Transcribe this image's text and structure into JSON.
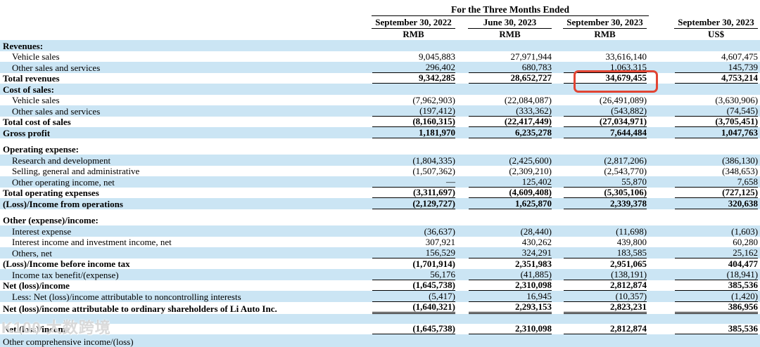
{
  "header": {
    "group_title": "For the Three Months Ended",
    "columns": [
      {
        "date": "September 30, 2022",
        "unit": "RMB"
      },
      {
        "date": "June 30, 2023",
        "unit": "RMB"
      },
      {
        "date": "September 30, 2023",
        "unit": "RMB"
      },
      {
        "date": "September 30, 2023",
        "unit": "US$"
      }
    ]
  },
  "rows": [
    {
      "label": "Revenues:",
      "bold": true,
      "indent": 0,
      "stripe": "blue",
      "rule": "none",
      "values": [
        "",
        "",
        "",
        ""
      ]
    },
    {
      "label": "Vehicle sales",
      "bold": false,
      "indent": 1,
      "stripe": "white",
      "rule": "none",
      "values": [
        "9,045,883",
        "27,971,944",
        "33,616,140",
        "4,607,475"
      ]
    },
    {
      "label": "Other sales and services",
      "bold": false,
      "indent": 1,
      "stripe": "blue",
      "rule": "single",
      "values": [
        "296,402",
        "680,783",
        "1,063,315",
        "145,739"
      ]
    },
    {
      "label": "Total revenues",
      "bold": true,
      "indent": 0,
      "stripe": "white",
      "rule": "single",
      "values": [
        "9,342,285",
        "28,652,727",
        "34,679,455",
        "4,753,214"
      ],
      "highlighted_value": "34,679,455"
    },
    {
      "label": "Cost of sales:",
      "bold": true,
      "indent": 0,
      "stripe": "blue",
      "rule": "none",
      "values": [
        "",
        "",
        "",
        ""
      ]
    },
    {
      "label": "Vehicle sales",
      "bold": false,
      "indent": 1,
      "stripe": "white",
      "rule": "none",
      "values": [
        "(7,962,903)",
        "(22,084,087)",
        "(26,491,089)",
        "(3,630,906)"
      ]
    },
    {
      "label": "Other sales and services",
      "bold": false,
      "indent": 1,
      "stripe": "blue",
      "rule": "single",
      "values": [
        "(197,412)",
        "(333,362)",
        "(543,882)",
        "(74,545)"
      ]
    },
    {
      "label": "Total cost of sales",
      "bold": true,
      "indent": 0,
      "stripe": "white",
      "rule": "single",
      "values": [
        "(8,160,315)",
        "(22,417,449)",
        "(27,034,971)",
        "(3,705,451)"
      ]
    },
    {
      "label": "Gross profit",
      "bold": true,
      "indent": 0,
      "stripe": "blue",
      "rule": "single",
      "values": [
        "1,181,970",
        "6,235,278",
        "7,644,484",
        "1,047,763"
      ]
    },
    {
      "type": "spacer",
      "stripe": "white"
    },
    {
      "label": "Operating expense:",
      "bold": true,
      "indent": 0,
      "stripe": "white",
      "rule": "none",
      "values": [
        "",
        "",
        "",
        ""
      ]
    },
    {
      "label": "Research and development",
      "bold": false,
      "indent": 1,
      "stripe": "blue",
      "rule": "none",
      "values": [
        "(1,804,335)",
        "(2,425,600)",
        "(2,817,206)",
        "(386,130)"
      ]
    },
    {
      "label": "Selling, general and administrative",
      "bold": false,
      "indent": 1,
      "stripe": "white",
      "rule": "none",
      "values": [
        "(1,507,362)",
        "(2,309,210)",
        "(2,543,770)",
        "(348,653)"
      ]
    },
    {
      "label": "Other operating income, net",
      "bold": false,
      "indent": 1,
      "stripe": "blue",
      "rule": "single",
      "values": [
        "—",
        "125,402",
        "55,870",
        "7,658"
      ]
    },
    {
      "label": "Total operating expenses",
      "bold": true,
      "indent": 0,
      "stripe": "white",
      "rule": "single",
      "values": [
        "(3,311,697)",
        "(4,609,408)",
        "(5,305,106)",
        "(727,125)"
      ]
    },
    {
      "label": "(Loss)/Income from operations",
      "bold": true,
      "indent": 0,
      "stripe": "blue",
      "rule": "single",
      "values": [
        "(2,129,727)",
        "1,625,870",
        "2,339,378",
        "320,638"
      ]
    },
    {
      "type": "spacer",
      "stripe": "white"
    },
    {
      "label": "Other (expense)/income:",
      "bold": true,
      "indent": 0,
      "stripe": "white",
      "rule": "none",
      "values": [
        "",
        "",
        "",
        ""
      ]
    },
    {
      "label": "Interest expense",
      "bold": false,
      "indent": 1,
      "stripe": "blue",
      "rule": "none",
      "values": [
        "(36,637)",
        "(28,440)",
        "(11,698)",
        "(1,603)"
      ]
    },
    {
      "label": "Interest income and investment income, net",
      "bold": false,
      "indent": 1,
      "stripe": "white",
      "rule": "none",
      "values": [
        "307,921",
        "430,262",
        "439,800",
        "60,280"
      ]
    },
    {
      "label": "Others, net",
      "bold": false,
      "indent": 1,
      "stripe": "blue",
      "rule": "single",
      "values": [
        "156,529",
        "324,291",
        "183,585",
        "25,162"
      ]
    },
    {
      "label": "(Loss)/Income before income tax",
      "bold": true,
      "indent": 0,
      "stripe": "white",
      "rule": "none",
      "values": [
        "(1,701,914)",
        "2,351,983",
        "2,951,065",
        "404,477"
      ]
    },
    {
      "label": "Income tax benefit/(expense)",
      "bold": false,
      "indent": 1,
      "stripe": "blue",
      "rule": "single",
      "values": [
        "56,176",
        "(41,885)",
        "(138,191)",
        "(18,941)"
      ]
    },
    {
      "label": "Net (loss)/income",
      "bold": true,
      "indent": 0,
      "stripe": "white",
      "rule": "single",
      "values": [
        "(1,645,738)",
        "2,310,098",
        "2,812,874",
        "385,536"
      ]
    },
    {
      "label": "Less: Net (loss)/income attributable to noncontrolling interests",
      "bold": false,
      "indent": 1,
      "stripe": "blue",
      "rule": "single",
      "values": [
        "(5,417)",
        "16,945",
        "(10,357)",
        "(1,420)"
      ]
    },
    {
      "label": "Net (loss)/income attributable to ordinary shareholders of Li Auto Inc.",
      "bold": true,
      "indent": 0,
      "stripe": "white",
      "rule": "double",
      "values": [
        "(1,640,321)",
        "2,293,153",
        "2,823,231",
        "386,956"
      ]
    },
    {
      "type": "blank",
      "stripe": "blue"
    },
    {
      "label": "Net (loss)/income",
      "bold": true,
      "indent": 0,
      "stripe": "white",
      "rule": "single",
      "values": [
        "(1,645,738)",
        "2,310,098",
        "2,812,874",
        "385,536"
      ]
    },
    {
      "label": "Other comprehensive income/(loss)",
      "bold": false,
      "indent": 0,
      "stripe": "blue",
      "rule": "none",
      "partial": true,
      "values": [
        "",
        "",
        "",
        ""
      ]
    }
  ],
  "annotation": {
    "type": "highlight-box",
    "target_value": "34,679,455",
    "color": "#e14433"
  },
  "watermark": {
    "text": "K100 大数跨境"
  },
  "colors": {
    "stripe_blue": "#cbe5f4",
    "rule": "#000000",
    "highlight": "#e14433"
  }
}
